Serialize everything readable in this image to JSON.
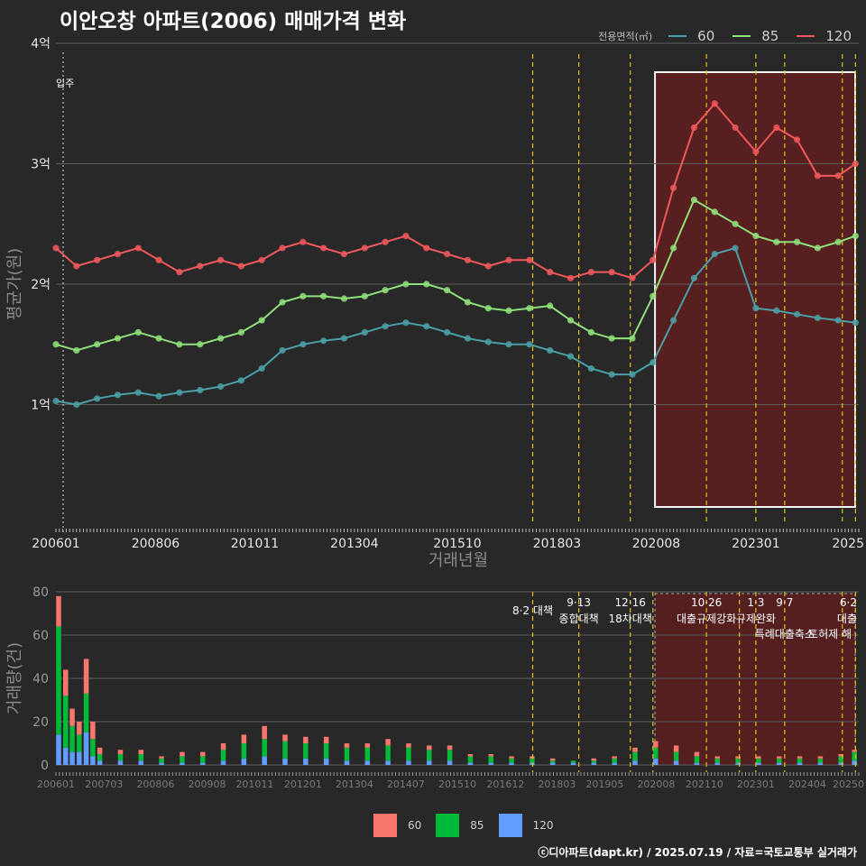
{
  "title": "이안오창 아파트(2006) 매매가격 변화",
  "footer": "ⓒ디아파트(dapt.kr) / 2025.07.19 / 자료=국토교통부 실거래가",
  "colors": {
    "s60": "#4aa0a6",
    "s85": "#8fe07a",
    "s120": "#f0585c",
    "bar60": "#f8766d",
    "bar85": "#00ba38",
    "bar120": "#619cff",
    "policy": "#e3c21b",
    "highlight": "#5a1f1f",
    "background": "#282828",
    "grid": "#5c5c5c"
  },
  "legend": {
    "title": "전용면적(㎡)",
    "items": [
      {
        "label": "60",
        "color": "#4aa0a6"
      },
      {
        "label": "85",
        "color": "#8fe07a"
      },
      {
        "label": "120",
        "color": "#f0585c"
      }
    ]
  },
  "legend_bottom": {
    "items": [
      {
        "label": "60",
        "color": "#f8766d"
      },
      {
        "label": "85",
        "color": "#00ba38"
      },
      {
        "label": "120",
        "color": "#619cff"
      }
    ]
  },
  "chart_data": [
    {
      "type": "line",
      "title": "이안오창 아파트(2006) 매매가격 변화",
      "xlabel": "거래년월",
      "ylabel": "평균가(원)",
      "xlim": [
        2006.0,
        2025.5
      ],
      "ylim": [
        0.0,
        4.0
      ],
      "y_unit": "억",
      "x_ticks": [
        {
          "x": 2006.0,
          "label": "200601"
        },
        {
          "x": 2008.42,
          "label": "200806"
        },
        {
          "x": 2010.83,
          "label": "201011"
        },
        {
          "x": 2013.25,
          "label": "201304"
        },
        {
          "x": 2015.75,
          "label": "201510"
        },
        {
          "x": 2018.17,
          "label": "201803"
        },
        {
          "x": 2020.58,
          "label": "202008"
        },
        {
          "x": 2023.0,
          "label": "202301"
        },
        {
          "x": 2025.33,
          "label": "2025"
        }
      ],
      "y_ticks": [
        {
          "y": 1,
          "label": "1억"
        },
        {
          "y": 2,
          "label": "2억"
        },
        {
          "y": 3,
          "label": "3억"
        },
        {
          "y": 4,
          "label": "4억"
        }
      ],
      "start_marker": {
        "x": 2006.0,
        "label": "입주"
      },
      "policy_lines": [
        2017.58,
        2018.7,
        2019.95,
        2021.8,
        2023.0,
        2023.7,
        2025.1,
        2025.42
      ],
      "highlight_range": [
        2020.55,
        2025.5
      ],
      "series": [
        {
          "name": "60",
          "color": "#4aa0a6",
          "x": [
            2006.0,
            2006.5,
            2007.0,
            2007.5,
            2008.0,
            2008.5,
            2009.0,
            2009.5,
            2010.0,
            2010.5,
            2011.0,
            2011.5,
            2012.0,
            2012.5,
            2013.0,
            2013.5,
            2014.0,
            2014.5,
            2015.0,
            2015.5,
            2016.0,
            2016.5,
            2017.0,
            2017.5,
            2018.0,
            2018.5,
            2019.0,
            2019.5,
            2020.0,
            2020.5,
            2021.0,
            2021.5,
            2022.0,
            2022.5,
            2023.0,
            2023.5,
            2024.0,
            2024.5,
            2025.0,
            2025.42
          ],
          "y": [
            1.03,
            1.0,
            1.05,
            1.08,
            1.1,
            1.07,
            1.1,
            1.12,
            1.15,
            1.2,
            1.3,
            1.45,
            1.5,
            1.53,
            1.55,
            1.6,
            1.65,
            1.68,
            1.65,
            1.6,
            1.55,
            1.52,
            1.5,
            1.5,
            1.45,
            1.4,
            1.3,
            1.25,
            1.25,
            1.35,
            1.7,
            2.05,
            2.25,
            2.3,
            1.8,
            1.78,
            1.75,
            1.72,
            1.7,
            1.68
          ]
        },
        {
          "name": "85",
          "color": "#8fe07a",
          "x": [
            2006.0,
            2006.5,
            2007.0,
            2007.5,
            2008.0,
            2008.5,
            2009.0,
            2009.5,
            2010.0,
            2010.5,
            2011.0,
            2011.5,
            2012.0,
            2012.5,
            2013.0,
            2013.5,
            2014.0,
            2014.5,
            2015.0,
            2015.5,
            2016.0,
            2016.5,
            2017.0,
            2017.5,
            2018.0,
            2018.5,
            2019.0,
            2019.5,
            2020.0,
            2020.5,
            2021.0,
            2021.5,
            2022.0,
            2022.5,
            2023.0,
            2023.5,
            2024.0,
            2024.5,
            2025.0,
            2025.42
          ],
          "y": [
            1.5,
            1.45,
            1.5,
            1.55,
            1.6,
            1.55,
            1.5,
            1.5,
            1.55,
            1.6,
            1.7,
            1.85,
            1.9,
            1.9,
            1.88,
            1.9,
            1.95,
            2.0,
            2.0,
            1.95,
            1.85,
            1.8,
            1.78,
            1.8,
            1.82,
            1.7,
            1.6,
            1.55,
            1.55,
            1.9,
            2.3,
            2.7,
            2.6,
            2.5,
            2.4,
            2.35,
            2.35,
            2.3,
            2.35,
            2.4
          ]
        },
        {
          "name": "120",
          "color": "#f0585c",
          "x": [
            2006.0,
            2006.5,
            2007.0,
            2007.5,
            2008.0,
            2008.5,
            2009.0,
            2009.5,
            2010.0,
            2010.5,
            2011.0,
            2011.5,
            2012.0,
            2012.5,
            2013.0,
            2013.5,
            2014.0,
            2014.5,
            2015.0,
            2015.5,
            2016.0,
            2016.5,
            2017.0,
            2017.5,
            2018.0,
            2018.5,
            2019.0,
            2019.5,
            2020.0,
            2020.5,
            2021.0,
            2021.5,
            2022.0,
            2022.5,
            2023.0,
            2023.5,
            2024.0,
            2024.5,
            2025.0,
            2025.42
          ],
          "y": [
            2.3,
            2.15,
            2.2,
            2.25,
            2.3,
            2.2,
            2.1,
            2.15,
            2.2,
            2.15,
            2.2,
            2.3,
            2.35,
            2.3,
            2.25,
            2.3,
            2.35,
            2.4,
            2.3,
            2.25,
            2.2,
            2.15,
            2.2,
            2.2,
            2.1,
            2.05,
            2.1,
            2.1,
            2.05,
            2.2,
            2.8,
            3.3,
            3.5,
            3.3,
            3.1,
            3.3,
            3.2,
            2.9,
            2.9,
            3.0
          ]
        }
      ]
    },
    {
      "type": "bar",
      "stacked": true,
      "xlabel": "",
      "ylabel": "거래량(건)",
      "xlim": [
        2006.0,
        2025.5
      ],
      "ylim": [
        0,
        80
      ],
      "y_ticks": [
        0,
        20,
        40,
        60,
        80
      ],
      "x_ticks": [
        {
          "x": 2006.0,
          "label": "200601"
        },
        {
          "x": 2007.17,
          "label": "200703"
        },
        {
          "x": 2008.42,
          "label": "200806"
        },
        {
          "x": 2009.67,
          "label": "200908"
        },
        {
          "x": 2010.83,
          "label": "201011"
        },
        {
          "x": 2012.0,
          "label": "201201"
        },
        {
          "x": 2013.25,
          "label": "201304"
        },
        {
          "x": 2014.5,
          "label": "201407"
        },
        {
          "x": 2015.75,
          "label": "201510"
        },
        {
          "x": 2016.92,
          "label": "201612"
        },
        {
          "x": 2018.17,
          "label": "201803"
        },
        {
          "x": 2019.33,
          "label": "201905"
        },
        {
          "x": 2020.58,
          "label": "202008"
        },
        {
          "x": 2021.75,
          "label": "202110"
        },
        {
          "x": 2023.0,
          "label": "202301"
        },
        {
          "x": 2024.25,
          "label": "202404"
        },
        {
          "x": 2025.42,
          "label": "20250"
        }
      ],
      "policy_lines": [
        2017.58,
        2018.7,
        2019.95,
        2020.5,
        2021.8,
        2022.6,
        2023.0,
        2023.7,
        2025.1,
        2025.42
      ],
      "policy_labels": [
        {
          "x": 2017.58,
          "date": "",
          "text": "8·2 대책"
        },
        {
          "x": 2018.7,
          "date": "9·13",
          "text": "종합대책"
        },
        {
          "x": 2019.95,
          "date": "12·16",
          "text": "18차대책"
        },
        {
          "x": 2021.8,
          "date": "10·26",
          "text": "대출규제강화"
        },
        {
          "x": 2023.0,
          "date": "1·3",
          "text": "규제완화"
        },
        {
          "x": 2023.7,
          "date": "9·7",
          "text": "특례대출축소"
        },
        {
          "x": 2024.8,
          "date": "",
          "text": "토허제 해"
        },
        {
          "x": 2025.42,
          "date": "6·2",
          "text": "대출"
        }
      ],
      "highlight_range": [
        2020.55,
        2025.5
      ],
      "series": [
        {
          "name": "60",
          "color": "#f8766d",
          "x": [
            2006.0,
            2006.17,
            2006.33,
            2006.5,
            2006.67,
            2006.83,
            2007.0,
            2007.5,
            2008.0,
            2008.5,
            2009.0,
            2009.5,
            2010.0,
            2010.5,
            2011.0,
            2011.5,
            2012.0,
            2012.5,
            2013.0,
            2013.5,
            2014.0,
            2014.5,
            2015.0,
            2015.5,
            2016.0,
            2016.5,
            2017.0,
            2017.5,
            2018.0,
            2018.5,
            2019.0,
            2019.5,
            2020.0,
            2020.5,
            2021.0,
            2021.5,
            2022.0,
            2022.5,
            2023.0,
            2023.5,
            2024.0,
            2024.5,
            2025.0,
            2025.33
          ],
          "values": [
            14,
            12,
            8,
            6,
            16,
            8,
            3,
            2,
            2,
            1,
            2,
            2,
            3,
            4,
            6,
            3,
            3,
            3,
            2,
            2,
            3,
            2,
            2,
            2,
            1,
            1,
            1,
            1,
            1,
            0,
            1,
            1,
            2,
            3,
            3,
            2,
            1,
            1,
            1,
            1,
            1,
            1,
            1,
            1
          ]
        },
        {
          "name": "85",
          "color": "#00ba38",
          "x": [
            2006.0,
            2006.17,
            2006.33,
            2006.5,
            2006.67,
            2006.83,
            2007.0,
            2007.5,
            2008.0,
            2008.5,
            2009.0,
            2009.5,
            2010.0,
            2010.5,
            2011.0,
            2011.5,
            2012.0,
            2012.5,
            2013.0,
            2013.5,
            2014.0,
            2014.5,
            2015.0,
            2015.5,
            2016.0,
            2016.5,
            2017.0,
            2017.5,
            2018.0,
            2018.5,
            2019.0,
            2019.5,
            2020.0,
            2020.5,
            2021.0,
            2021.5,
            2022.0,
            2022.5,
            2023.0,
            2023.5,
            2024.0,
            2024.5,
            2025.0,
            2025.33
          ],
          "values": [
            50,
            24,
            12,
            8,
            18,
            8,
            3,
            3,
            3,
            2,
            3,
            3,
            5,
            7,
            8,
            8,
            7,
            7,
            6,
            6,
            7,
            6,
            5,
            5,
            3,
            3,
            2,
            2,
            1,
            1,
            1,
            2,
            4,
            5,
            4,
            3,
            2,
            2,
            2,
            2,
            2,
            2,
            3,
            4
          ]
        },
        {
          "name": "120",
          "color": "#619cff",
          "x": [
            2006.0,
            2006.17,
            2006.33,
            2006.5,
            2006.67,
            2006.83,
            2007.0,
            2007.5,
            2008.0,
            2008.5,
            2009.0,
            2009.5,
            2010.0,
            2010.5,
            2011.0,
            2011.5,
            2012.0,
            2012.5,
            2013.0,
            2013.5,
            2014.0,
            2014.5,
            2015.0,
            2015.5,
            2016.0,
            2016.5,
            2017.0,
            2017.5,
            2018.0,
            2018.5,
            2019.0,
            2019.5,
            2020.0,
            2020.5,
            2021.0,
            2021.5,
            2022.0,
            2022.5,
            2023.0,
            2023.5,
            2024.0,
            2024.5,
            2025.0,
            2025.33
          ],
          "values": [
            14,
            8,
            6,
            6,
            15,
            4,
            2,
            2,
            2,
            1,
            1,
            1,
            2,
            3,
            4,
            3,
            3,
            3,
            2,
            2,
            2,
            2,
            2,
            2,
            1,
            1,
            1,
            1,
            1,
            1,
            1,
            1,
            2,
            3,
            2,
            1,
            1,
            1,
            1,
            1,
            1,
            1,
            1,
            2
          ]
        }
      ]
    }
  ]
}
